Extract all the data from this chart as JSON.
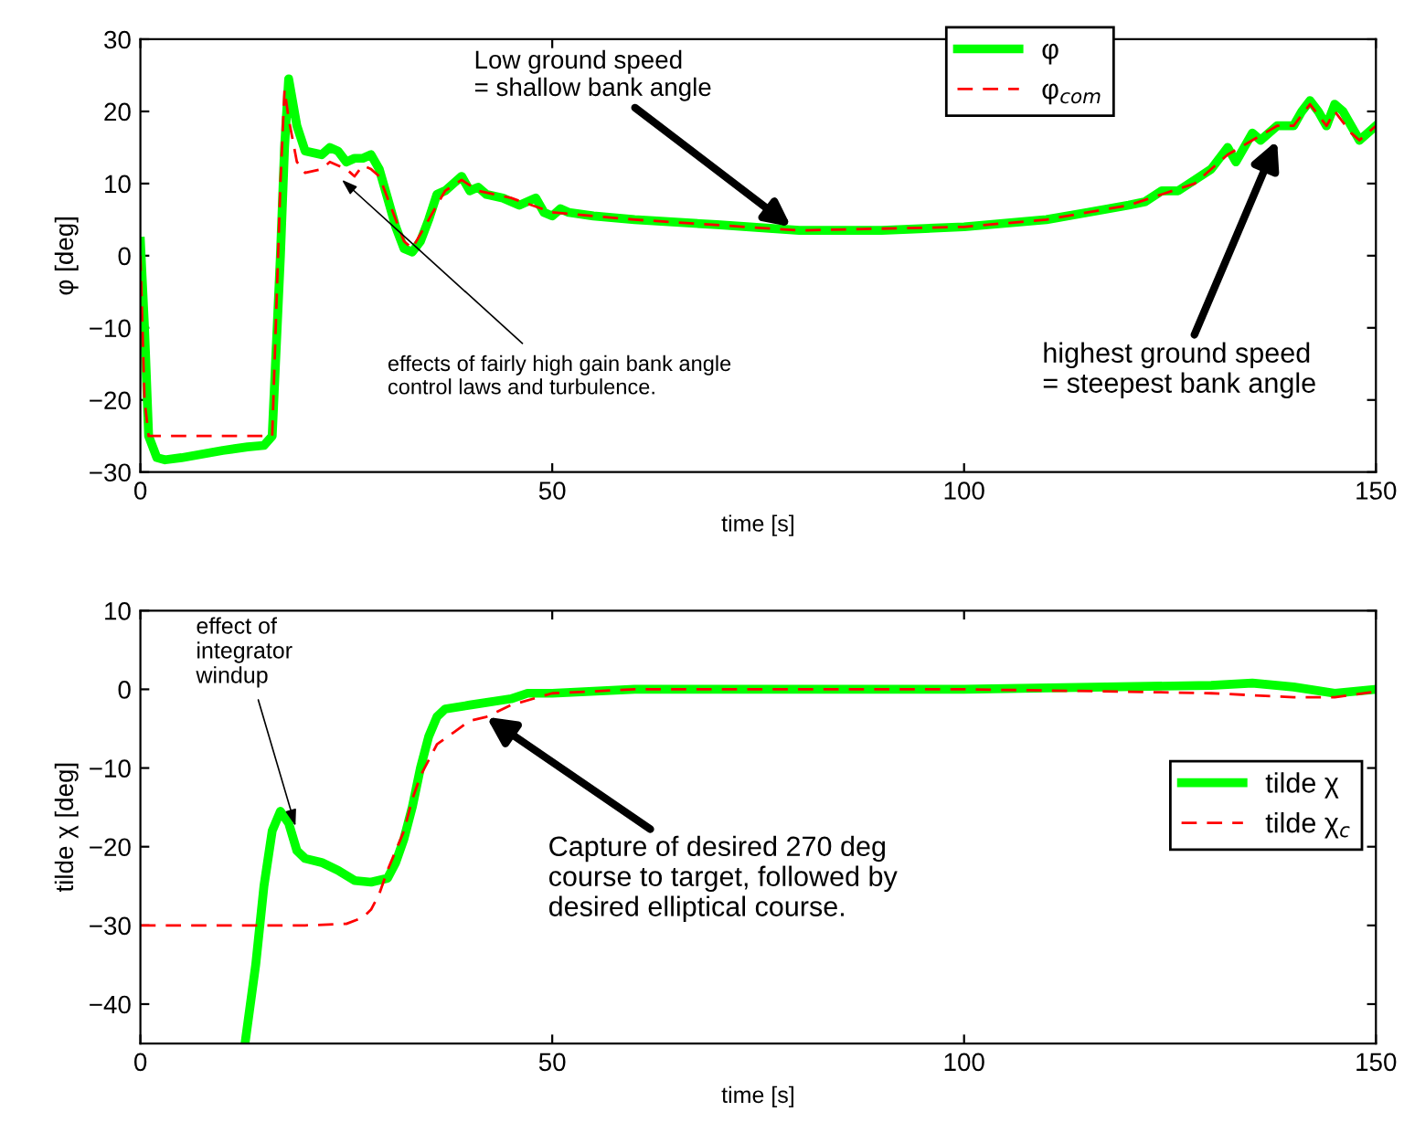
{
  "chart_data": [
    {
      "type": "line",
      "xlabel": "time [s]",
      "ylabel": "φ [deg]",
      "xlim": [
        0,
        150
      ],
      "ylim": [
        -30,
        30
      ],
      "xticks": [
        0,
        50,
        100,
        150
      ],
      "yticks": [
        -30,
        -20,
        -10,
        0,
        10,
        20,
        30
      ],
      "grid": false,
      "legend": "top",
      "series": [
        {
          "name": "φ",
          "color": "#00ff00",
          "line_style": "solid",
          "x": [
            0,
            0.5,
            1,
            2,
            3,
            5,
            10,
            13,
            15,
            16,
            17,
            17.5,
            18,
            19,
            20,
            22,
            23,
            24,
            25,
            26,
            27,
            28,
            29,
            30,
            31,
            32,
            33,
            34,
            35,
            36,
            37,
            38,
            39,
            40,
            41,
            42,
            44,
            46,
            47,
            48,
            49,
            50,
            51,
            52,
            55,
            60,
            70,
            80,
            90,
            100,
            110,
            115,
            120,
            122,
            124,
            126,
            128,
            130,
            132,
            133,
            135,
            136,
            138,
            140,
            141,
            142,
            143,
            144,
            145,
            146,
            147,
            148,
            149,
            150
          ],
          "values": [
            2,
            -10,
            -25,
            -28,
            -28.3,
            -28,
            -27,
            -26.5,
            -26.3,
            -25,
            0,
            15,
            24.5,
            18,
            14.5,
            14,
            15,
            14.5,
            13,
            13.5,
            13.5,
            14,
            12,
            8,
            4,
            1,
            0.5,
            2,
            5,
            8.5,
            9,
            10,
            11,
            9,
            9.5,
            8.5,
            8,
            7,
            7.5,
            8,
            6,
            5.5,
            6.5,
            6,
            5.5,
            5,
            4.3,
            3.5,
            3.5,
            4,
            5,
            6,
            7,
            7.5,
            9,
            9,
            10.5,
            12,
            15,
            13,
            17,
            16,
            18,
            18,
            20,
            21.5,
            20,
            18,
            21,
            20,
            18,
            16,
            17,
            18
          ]
        },
        {
          "name": "φ$_{com}$",
          "color": "#ff0000",
          "line_style": "dashed",
          "x": [
            0,
            0.5,
            1,
            15,
            16,
            17,
            17.5,
            18,
            19,
            20,
            22,
            23,
            25,
            26,
            27,
            28,
            29,
            30,
            32,
            33,
            35,
            37,
            39,
            41,
            45,
            50,
            60,
            80,
            100,
            110,
            120,
            124,
            128,
            132,
            135,
            138,
            140,
            142,
            144,
            145,
            147,
            148,
            150
          ],
          "values": [
            0,
            -20,
            -25,
            -25,
            -25,
            10,
            23,
            19,
            13,
            11.5,
            12,
            13,
            12,
            11,
            12.5,
            12,
            11,
            8,
            2,
            1,
            5,
            9,
            10.5,
            9,
            8,
            6,
            5,
            3.5,
            4,
            5,
            7,
            8.5,
            10,
            14,
            16,
            18,
            18,
            21,
            18,
            20,
            17,
            16,
            18
          ]
        }
      ],
      "annotations": [
        {
          "text": "Low ground speed\n= shallow bank angle",
          "x": 79,
          "y": 4
        },
        {
          "text": "effects of fairly high gain bank angle\ncontrol laws and turbulence.",
          "x": 24,
          "y": 11
        },
        {
          "text": "highest ground speed\n= steepest bank angle",
          "x": 138,
          "y": 16
        }
      ]
    },
    {
      "type": "line",
      "xlabel": "time [s]",
      "ylabel": "tilde χ [deg]",
      "xlim": [
        0,
        150
      ],
      "ylim": [
        -45,
        10
      ],
      "xticks": [
        0,
        50,
        100,
        150
      ],
      "yticks": [
        -40,
        -30,
        -20,
        -10,
        0,
        10
      ],
      "grid": false,
      "legend": "right",
      "series": [
        {
          "name": "tilde χ",
          "color": "#00ff00",
          "line_style": "solid",
          "x": [
            12.7,
            14,
            15,
            16,
            17,
            18,
            19,
            20,
            22,
            24,
            26,
            28,
            30,
            31,
            32,
            33,
            34,
            35,
            36,
            37,
            40,
            45,
            47,
            50,
            60,
            100,
            130,
            135,
            140,
            145,
            150
          ],
          "values": [
            -45,
            -35,
            -25,
            -18,
            -15.5,
            -17,
            -20.5,
            -21.5,
            -22,
            -23,
            -24.3,
            -24.5,
            -24,
            -22,
            -19,
            -15,
            -10,
            -6,
            -3.5,
            -2.5,
            -2,
            -1.2,
            -0.5,
            -0.5,
            0,
            0,
            0.5,
            0.8,
            0.3,
            -0.5,
            0
          ]
        },
        {
          "name": "tilde χ$_{c}$",
          "color": "#ff0000",
          "line_style": "dashed",
          "x": [
            0,
            20,
            25,
            27,
            28,
            29,
            30,
            32,
            33,
            34,
            36,
            38,
            40,
            42,
            45,
            50,
            60,
            100,
            120,
            130,
            140,
            145,
            150
          ],
          "values": [
            -30,
            -30,
            -29.8,
            -29,
            -28,
            -26,
            -23,
            -18,
            -14,
            -11,
            -7,
            -5.5,
            -4,
            -3.5,
            -2,
            -0.5,
            0,
            0,
            -0.3,
            -0.5,
            -1,
            -1,
            -0.3
          ]
        }
      ],
      "annotations": [
        {
          "text": "effect of\nintegrator\nwindup",
          "x": 19,
          "y": -18
        },
        {
          "text": "Capture of desired 270 deg\ncourse to target, followed by\ndesired elliptical course.",
          "x": 42,
          "y": -3.5
        }
      ]
    }
  ]
}
